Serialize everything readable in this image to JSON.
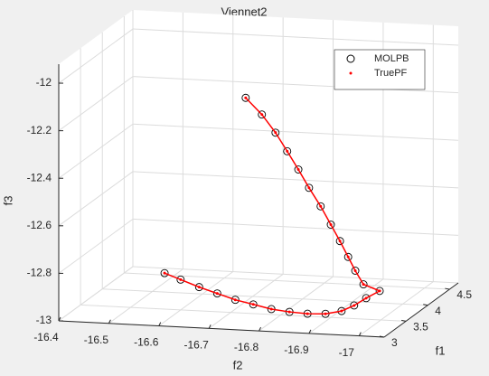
{
  "chart_data": {
    "type": "scatter3",
    "title": "Viennet2",
    "xlabel": "f1",
    "ylabel": "f2",
    "zlabel": "f3",
    "xlim": [
      3,
      4.7
    ],
    "ylim": [
      -16.4,
      -17.05
    ],
    "zlim": [
      -13,
      -11.92
    ],
    "xticks": [
      3,
      3.5,
      4,
      4.5
    ],
    "yticks": [
      -16.4,
      -16.5,
      -16.6,
      -16.7,
      -16.8,
      -16.9,
      -17
    ],
    "zticks": [
      -13,
      -12.8,
      -12.6,
      -12.4,
      -12.2,
      -12
    ],
    "grid": true,
    "legend": "northeast",
    "series": [
      {
        "name": "MOLPB",
        "color": "#000000",
        "marker": "circle",
        "x": [
          3.05,
          3.12,
          3.2,
          3.27,
          3.34,
          3.42,
          3.49,
          3.56,
          3.63,
          3.71,
          3.78,
          3.85,
          3.93,
          4.0,
          3.8,
          3.75,
          3.69,
          3.64,
          3.58,
          3.53,
          3.47,
          3.42,
          3.36,
          3.31,
          3.25,
          3.2
        ],
        "y": [
          -16.607,
          -16.633,
          -16.663,
          -16.693,
          -16.723,
          -16.752,
          -16.782,
          -16.812,
          -16.842,
          -16.871,
          -16.897,
          -16.916,
          -16.933,
          -16.954,
          -16.939,
          -16.927,
          -16.918,
          -16.906,
          -16.893,
          -16.877,
          -16.859,
          -16.842,
          -16.825,
          -16.806,
          -16.784,
          -16.756
        ],
        "z": [
          -12.784,
          -12.818,
          -12.857,
          -12.89,
          -12.923,
          -12.95,
          -12.976,
          -12.994,
          -13.008,
          -13.016,
          -13.011,
          -12.995,
          -12.973,
          -12.95,
          -12.897,
          -12.834,
          -12.769,
          -12.697,
          -12.621,
          -12.539,
          -12.455,
          -12.373,
          -12.29,
          -12.207,
          -12.125,
          -12.051
        ]
      },
      {
        "name": "TruePF",
        "color": "#ff0000",
        "marker": "dot",
        "x": [
          3.05,
          3.12,
          3.2,
          3.27,
          3.34,
          3.42,
          3.49,
          3.56,
          3.63,
          3.71,
          3.78,
          3.85,
          3.93,
          4.0,
          3.8,
          3.75,
          3.69,
          3.64,
          3.58,
          3.53,
          3.47,
          3.42,
          3.36,
          3.31,
          3.25,
          3.2
        ],
        "y": [
          -16.607,
          -16.633,
          -16.663,
          -16.693,
          -16.723,
          -16.752,
          -16.782,
          -16.812,
          -16.842,
          -16.871,
          -16.897,
          -16.916,
          -16.933,
          -16.954,
          -16.939,
          -16.927,
          -16.918,
          -16.906,
          -16.893,
          -16.877,
          -16.859,
          -16.842,
          -16.825,
          -16.806,
          -16.784,
          -16.756
        ],
        "z": [
          -12.784,
          -12.818,
          -12.857,
          -12.89,
          -12.923,
          -12.95,
          -12.976,
          -12.994,
          -13.008,
          -13.016,
          -13.011,
          -12.995,
          -12.973,
          -12.95,
          -12.897,
          -12.834,
          -12.769,
          -12.697,
          -12.621,
          -12.539,
          -12.455,
          -12.373,
          -12.29,
          -12.207,
          -12.125,
          -12.051
        ]
      }
    ]
  }
}
